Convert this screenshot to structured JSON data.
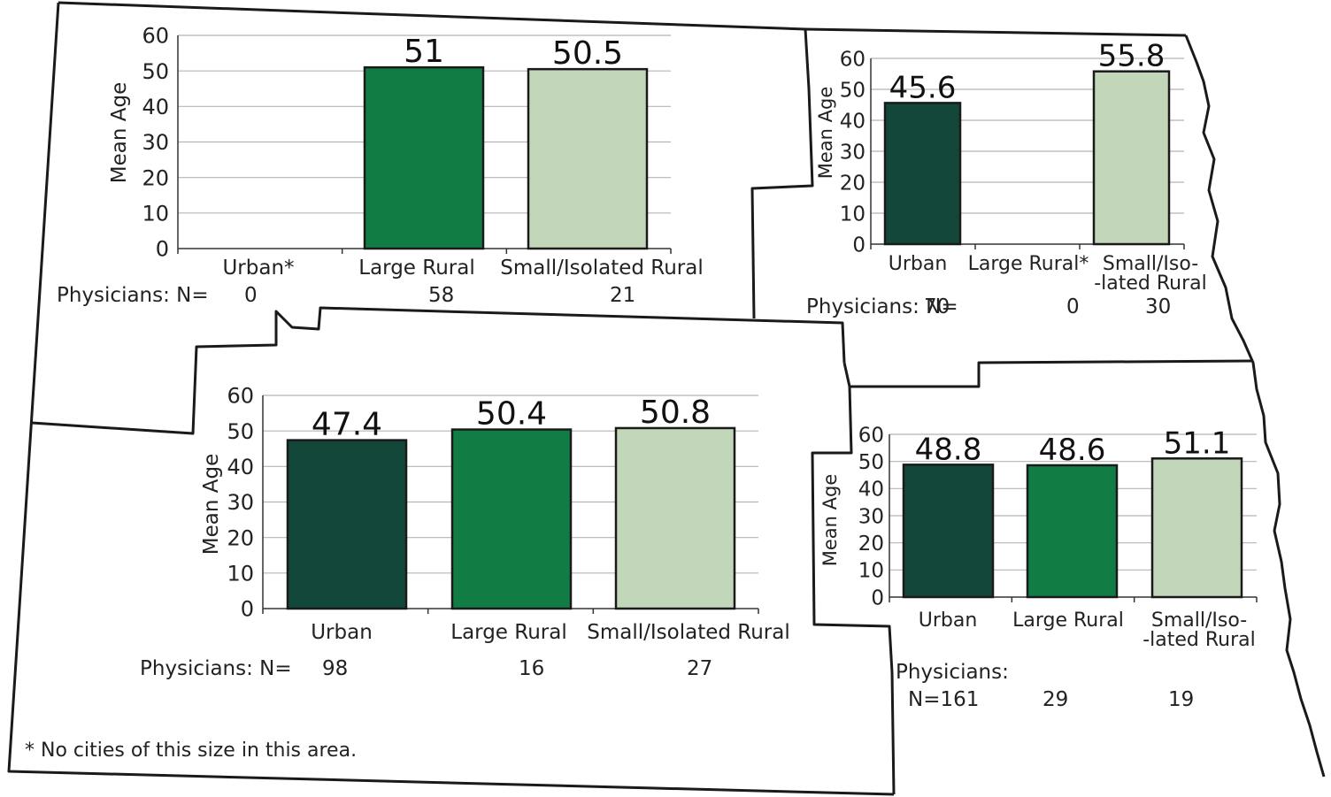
{
  "colors": {
    "urban": "#12473a",
    "large_rural": "#117d44",
    "small_rural": "#c2d6b9",
    "grid": "#b5b5b5",
    "border": "#1a1a1a"
  },
  "footnote": "* No cities of this size in this area.",
  "chart_data": [
    {
      "type": "bar",
      "ylabel": "Mean Age",
      "ylim": [
        0,
        60
      ],
      "yticks": [
        "0",
        "10",
        "20",
        "30",
        "40",
        "50",
        "60"
      ],
      "categories": [
        "Urban*",
        "Large Rural",
        "Small/Isolated Rural"
      ],
      "values": [
        null,
        51,
        50.5
      ],
      "value_labels": [
        "",
        "51",
        "50.5"
      ],
      "n_prefix": "Physicians: N=",
      "n_values": [
        "0",
        "58",
        "21"
      ]
    },
    {
      "type": "bar",
      "ylabel": "Mean Age",
      "ylim": [
        0,
        60
      ],
      "yticks": [
        "0",
        "10",
        "20",
        "30",
        "40",
        "50",
        "60"
      ],
      "categories": [
        "Urban",
        "Large Rural*",
        "Small/Iso- -lated Rural"
      ],
      "values": [
        45.6,
        null,
        55.8
      ],
      "value_labels": [
        "45.6",
        "",
        "55.8"
      ],
      "n_prefix": "Physicians: N=",
      "n_values": [
        "70",
        "0",
        "30"
      ]
    },
    {
      "type": "bar",
      "ylabel": "Mean Age",
      "ylim": [
        0,
        60
      ],
      "yticks": [
        "0",
        "10",
        "20",
        "30",
        "40",
        "50",
        "60"
      ],
      "categories": [
        "Urban",
        "Large Rural",
        "Small/Isolated Rural"
      ],
      "values": [
        47.4,
        50.4,
        50.8
      ],
      "value_labels": [
        "47.4",
        "50.4",
        "50.8"
      ],
      "n_prefix": "Physicians: N=",
      "n_values": [
        "98",
        "16",
        "27"
      ]
    },
    {
      "type": "bar",
      "ylabel": "Mean Age",
      "ylim": [
        0,
        60
      ],
      "yticks": [
        "0",
        "10",
        "20",
        "30",
        "40",
        "50",
        "60"
      ],
      "categories": [
        "Urban",
        "Large Rural",
        "Small/Iso- -lated Rural"
      ],
      "values": [
        48.8,
        48.6,
        51.1
      ],
      "value_labels": [
        "48.8",
        "48.6",
        "51.1"
      ],
      "n_prefix": "Physicians:",
      "n_values": [
        "N=161",
        "29",
        "19"
      ]
    }
  ]
}
